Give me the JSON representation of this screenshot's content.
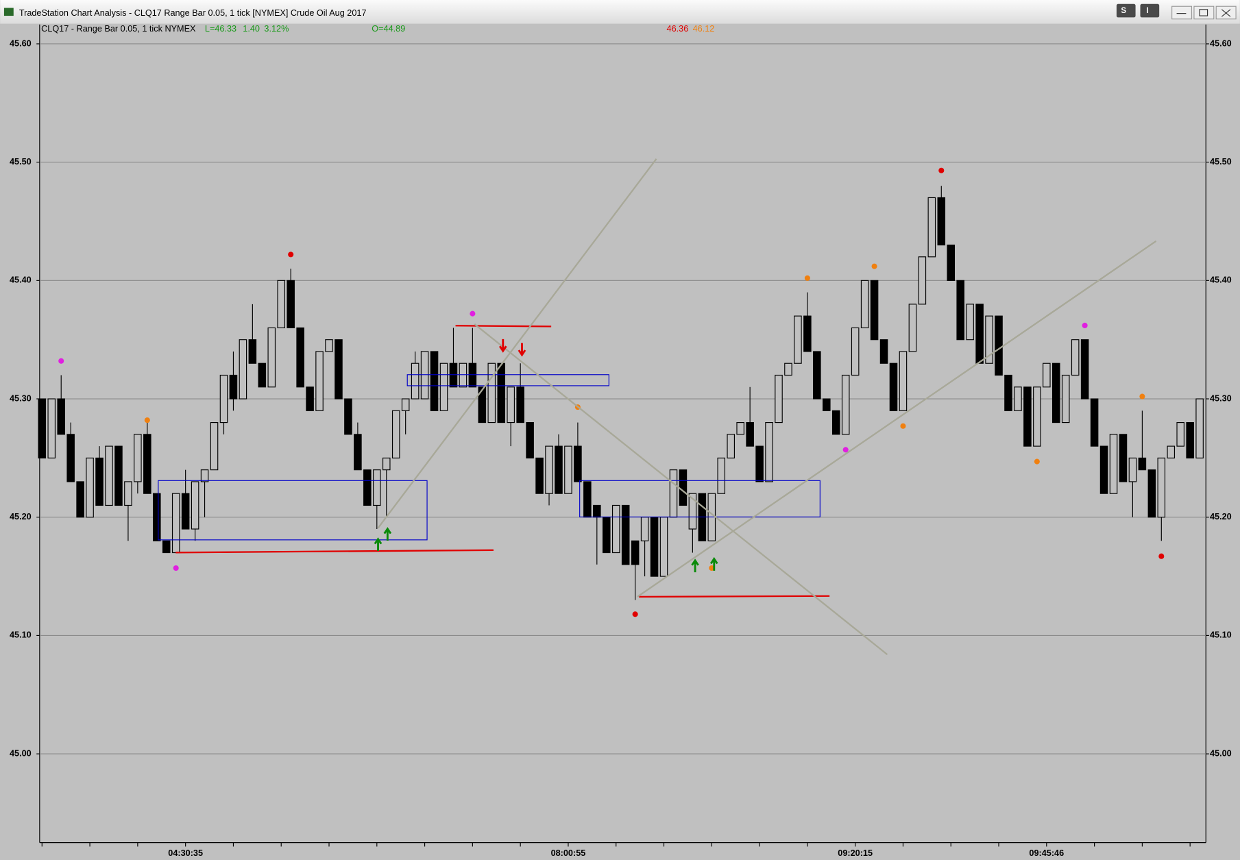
{
  "window": {
    "title": "TradeStation Chart Analysis - CLQ17 Range Bar 0.05, 1 tick [NYMEX] Crude Oil Aug 2017",
    "buttons": [
      "S",
      "I"
    ]
  },
  "chart_data": {
    "type": "candlestick",
    "title": "CLQ17 - Range Bar 0.05, 1 tick  NYMEX",
    "annotations": [
      {
        "text": "L=46.33",
        "color": "#1a9a1a"
      },
      {
        "text": "1.40",
        "color": "#1a9a1a"
      },
      {
        "text": "3.12%",
        "color": "#1a9a1a"
      },
      {
        "text": "O=44.89",
        "color": "#1a9a1a"
      },
      {
        "text": "46.36",
        "color": "#e00000"
      },
      {
        "text": "46.12",
        "color": "#f08010"
      }
    ],
    "categories": [
      null,
      null,
      null,
      null,
      null,
      null,
      null,
      null,
      null,
      null,
      null,
      null,
      null,
      null,
      null,
      "04:30:35",
      null,
      null,
      null,
      null,
      null,
      null,
      null,
      null,
      null,
      null,
      null,
      null,
      null,
      null,
      null,
      null,
      null,
      null,
      null,
      null,
      null,
      null,
      null,
      null,
      null,
      null,
      null,
      null,
      null,
      null,
      null,
      null,
      null,
      null,
      null,
      null,
      null,
      null,
      null,
      "08:00:55",
      null,
      null,
      null,
      null,
      null,
      null,
      null,
      null,
      null,
      null,
      null,
      null,
      null,
      null,
      null,
      null,
      null,
      null,
      null,
      null,
      null,
      null,
      null,
      null,
      null,
      null,
      null,
      null,
      null,
      "09:20:15",
      null,
      null,
      null,
      null,
      null,
      null,
      null,
      null,
      null,
      null,
      null,
      null,
      null,
      null,
      null,
      null,
      null,
      null,
      null,
      "09:45:46",
      null,
      null,
      null,
      null,
      null,
      null,
      null,
      null,
      null,
      null,
      null,
      null,
      null,
      null,
      null,
      null
    ],
    "open": [
      45.3,
      45.25,
      45.3,
      45.27,
      45.23,
      45.2,
      45.25,
      45.21,
      45.26,
      45.21,
      45.23,
      45.27,
      45.22,
      45.18,
      45.17,
      45.22,
      45.19,
      45.23,
      45.24,
      45.28,
      45.32,
      45.3,
      45.35,
      45.33,
      45.31,
      45.36,
      45.4,
      45.36,
      45.31,
      45.29,
      45.34,
      45.35,
      45.3,
      45.27,
      45.24,
      45.21,
      45.24,
      45.25,
      45.29,
      45.3,
      45.3,
      45.34,
      45.29,
      45.33,
      45.31,
      45.33,
      45.31,
      45.28,
      45.33,
      45.28,
      45.31,
      45.28,
      45.25,
      45.22,
      45.26,
      45.22,
      45.26,
      45.23,
      45.21,
      45.2,
      45.17,
      45.21,
      45.18,
      45.18,
      45.2,
      45.15,
      45.2,
      45.24,
      45.19,
      45.22,
      45.18,
      45.22,
      45.25,
      45.27,
      45.28,
      45.26,
      45.23,
      45.28,
      45.32,
      45.33,
      45.37,
      45.34,
      45.3,
      45.29,
      45.27,
      45.32,
      45.36,
      45.4,
      45.35,
      45.33,
      45.29,
      45.34,
      45.38,
      45.42,
      45.47,
      45.43,
      45.4,
      45.35,
      45.38,
      45.33,
      45.37,
      45.32,
      45.29,
      45.31,
      45.26,
      45.31,
      45.33,
      45.28,
      45.32,
      45.35,
      45.3,
      45.26,
      45.22,
      45.27,
      45.23,
      45.25,
      45.24,
      45.2,
      45.25,
      45.26,
      45.28,
      45.25
    ],
    "high": [
      45.3,
      45.3,
      45.32,
      45.28,
      45.23,
      45.25,
      45.26,
      45.26,
      45.26,
      45.23,
      45.27,
      45.28,
      45.22,
      45.18,
      45.22,
      45.24,
      45.23,
      45.24,
      45.28,
      45.32,
      45.34,
      45.35,
      45.38,
      45.33,
      45.36,
      45.4,
      45.41,
      45.36,
      45.31,
      45.34,
      45.35,
      45.35,
      45.3,
      45.28,
      45.24,
      45.24,
      45.25,
      45.29,
      45.3,
      45.34,
      45.34,
      45.34,
      45.33,
      45.36,
      45.33,
      45.36,
      45.31,
      45.33,
      45.33,
      45.31,
      45.33,
      45.28,
      45.25,
      45.26,
      45.27,
      45.26,
      45.28,
      45.23,
      45.21,
      45.2,
      45.21,
      45.21,
      45.18,
      45.2,
      45.2,
      45.2,
      45.24,
      45.24,
      45.22,
      45.22,
      45.22,
      45.25,
      45.27,
      45.28,
      45.31,
      45.26,
      45.28,
      45.32,
      45.33,
      45.37,
      45.39,
      45.34,
      45.3,
      45.29,
      45.32,
      45.36,
      45.4,
      45.4,
      45.35,
      45.33,
      45.34,
      45.38,
      45.42,
      45.47,
      45.48,
      45.43,
      45.4,
      45.38,
      45.38,
      45.37,
      45.37,
      45.32,
      45.31,
      45.31,
      45.31,
      45.33,
      45.33,
      45.32,
      45.35,
      45.35,
      45.3,
      45.26,
      45.27,
      45.27,
      45.25,
      45.29,
      45.24,
      45.25,
      45.26,
      45.28,
      45.28,
      45.3
    ],
    "low": [
      45.25,
      45.25,
      45.27,
      45.23,
      45.2,
      45.2,
      45.21,
      45.21,
      45.21,
      45.18,
      45.22,
      45.22,
      45.18,
      45.17,
      45.17,
      45.19,
      45.18,
      45.2,
      45.24,
      45.27,
      45.29,
      45.3,
      45.33,
      45.31,
      45.31,
      45.36,
      45.36,
      45.31,
      45.29,
      45.29,
      45.34,
      45.3,
      45.27,
      45.24,
      45.21,
      45.19,
      45.2,
      45.25,
      45.27,
      45.3,
      45.3,
      45.29,
      45.29,
      45.31,
      45.31,
      45.31,
      45.28,
      45.28,
      45.28,
      45.26,
      45.28,
      45.25,
      45.22,
      45.21,
      45.22,
      45.22,
      45.23,
      45.2,
      45.16,
      45.17,
      45.17,
      45.16,
      45.13,
      45.15,
      45.15,
      45.15,
      45.2,
      45.21,
      45.17,
      45.18,
      45.18,
      45.22,
      45.25,
      45.27,
      45.26,
      45.23,
      45.23,
      45.28,
      45.32,
      45.33,
      45.34,
      45.3,
      45.29,
      45.27,
      45.27,
      45.32,
      45.36,
      45.35,
      45.33,
      45.29,
      45.29,
      45.34,
      45.38,
      45.42,
      45.43,
      45.4,
      45.35,
      45.35,
      45.33,
      45.33,
      45.32,
      45.29,
      45.29,
      45.26,
      45.26,
      45.31,
      45.28,
      45.28,
      45.32,
      45.3,
      45.26,
      45.22,
      45.22,
      45.23,
      45.2,
      45.24,
      45.2,
      45.18,
      45.25,
      45.26,
      45.25,
      45.25
    ],
    "close": [
      45.25,
      45.3,
      45.27,
      45.23,
      45.2,
      45.25,
      45.21,
      45.26,
      45.21,
      45.23,
      45.27,
      45.22,
      45.18,
      45.17,
      45.22,
      45.19,
      45.23,
      45.24,
      45.28,
      45.32,
      45.3,
      45.35,
      45.33,
      45.31,
      45.36,
      45.4,
      45.36,
      45.31,
      45.29,
      45.34,
      45.35,
      45.3,
      45.27,
      45.24,
      45.21,
      45.24,
      45.25,
      45.29,
      45.3,
      45.33,
      45.34,
      45.29,
      45.33,
      45.31,
      45.33,
      45.31,
      45.28,
      45.33,
      45.28,
      45.31,
      45.28,
      45.25,
      45.22,
      45.26,
      45.22,
      45.26,
      45.23,
      45.2,
      45.2,
      45.17,
      45.21,
      45.16,
      45.16,
      45.2,
      45.15,
      45.2,
      45.24,
      45.21,
      45.22,
      45.18,
      45.22,
      45.25,
      45.27,
      45.28,
      45.26,
      45.23,
      45.28,
      45.32,
      45.33,
      45.37,
      45.34,
      45.3,
      45.29,
      45.27,
      45.32,
      45.36,
      45.4,
      45.35,
      45.33,
      45.29,
      45.34,
      45.38,
      45.42,
      45.47,
      45.43,
      45.4,
      45.35,
      45.38,
      45.33,
      45.37,
      45.32,
      45.29,
      45.31,
      45.26,
      45.31,
      45.33,
      45.28,
      45.32,
      45.35,
      45.3,
      45.26,
      45.22,
      45.27,
      45.23,
      45.25,
      45.24,
      45.2,
      45.25,
      45.26,
      45.28,
      45.25,
      45.3
    ],
    "up_color": "#c0c0c0",
    "down_color": "#000000",
    "markers": {
      "index": [
        2,
        11,
        14,
        26,
        45,
        56,
        62,
        70,
        80,
        84,
        87,
        90,
        94,
        104,
        109,
        115,
        117
      ],
      "values": [
        45.332,
        45.282,
        45.157,
        45.422,
        45.372,
        45.293,
        45.118,
        45.157,
        45.402,
        45.257,
        45.412,
        45.277,
        45.493,
        45.247,
        45.362,
        45.302,
        45.167
      ],
      "colors": [
        "#e020e0",
        "#f08010",
        "#e020e0",
        "#e00000",
        "#e020e0",
        "#f08010",
        "#e00000",
        "#f08010",
        "#f08010",
        "#e020e0",
        "#f08010",
        "#f08010",
        "#e00000",
        "#f08010",
        "#e020e0",
        "#f08010",
        "#e00000"
      ]
    },
    "ylim": [
      44.925,
      45.615
    ],
    "yticks": [
      {
        "value": 45.0,
        "label": "45.00"
      },
      {
        "value": 45.1,
        "label": "45.10"
      },
      {
        "value": 45.2,
        "label": "45.20"
      },
      {
        "value": 45.3,
        "label": "45.30"
      },
      {
        "value": 45.4,
        "label": "45.40"
      },
      {
        "value": 45.5,
        "label": "45.50"
      },
      {
        "value": 45.6,
        "label": "45.60"
      }
    ],
    "grid": true
  }
}
